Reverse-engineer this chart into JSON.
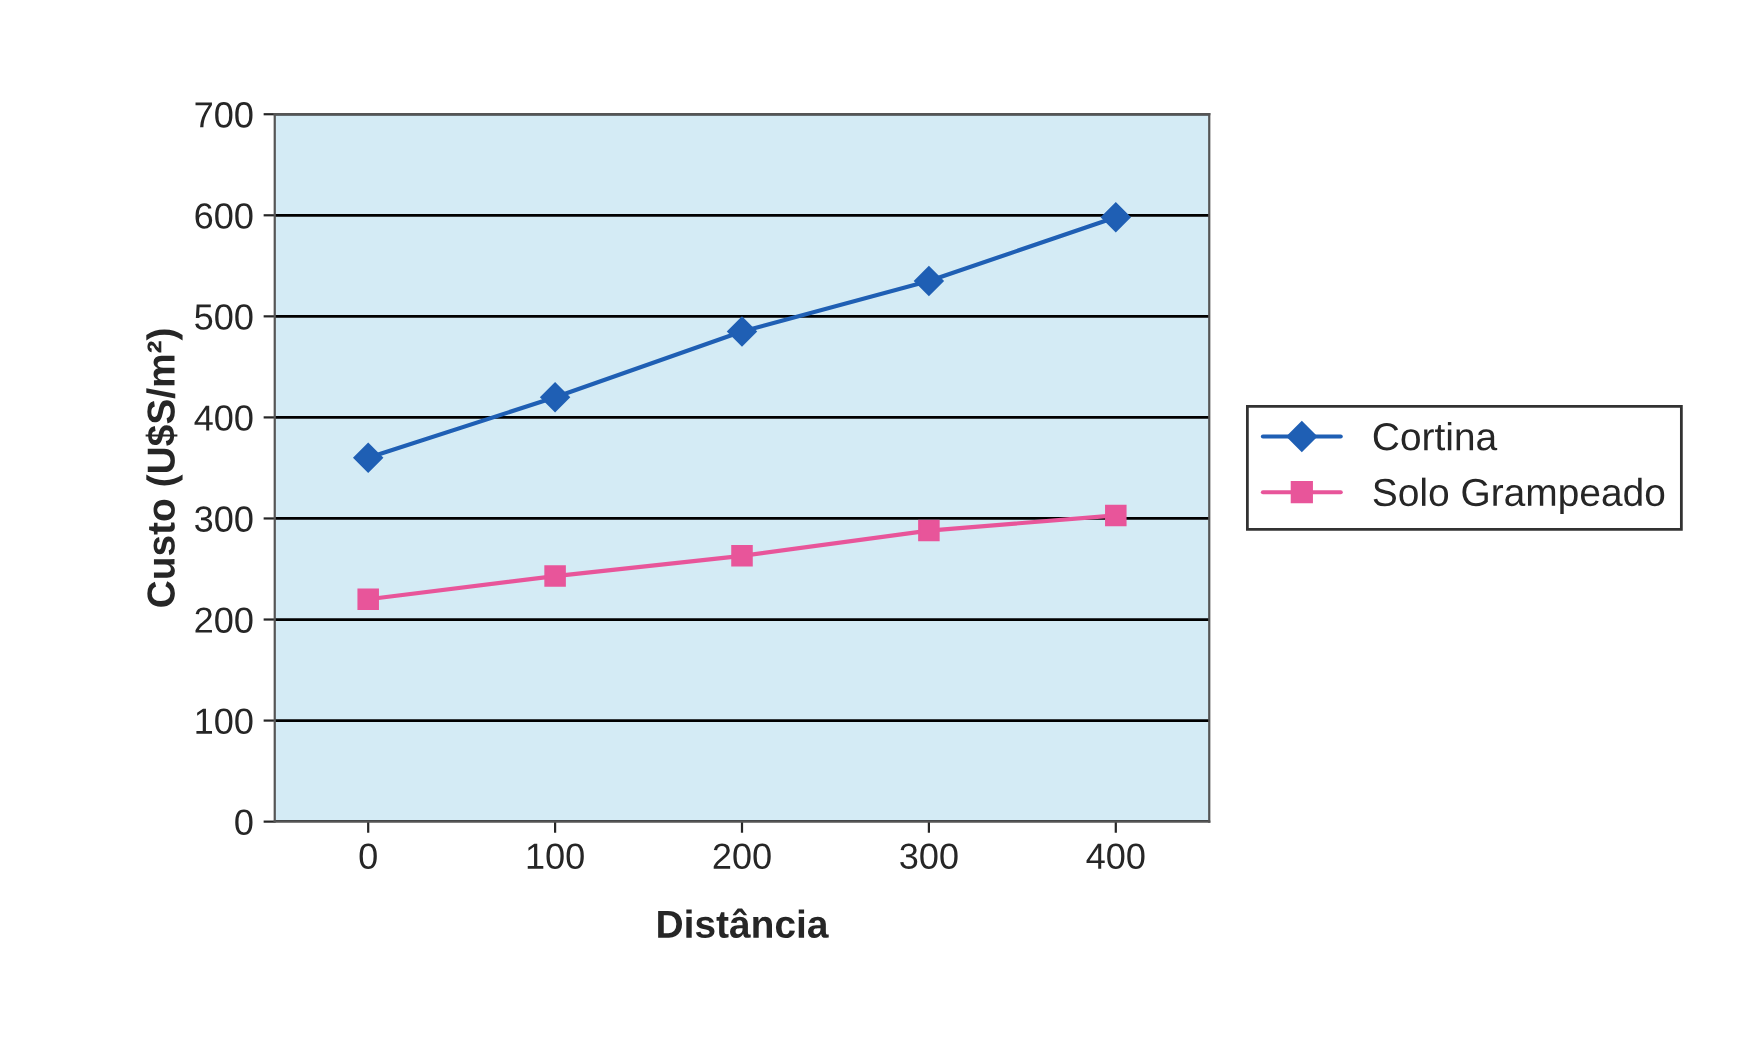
{
  "chart_data": {
    "type": "line",
    "xlabel": "Distância",
    "ylabel": "Custo (U$S/m²)",
    "categories": [
      "0",
      "100",
      "200",
      "300",
      "400"
    ],
    "series": [
      {
        "name": "Cortina",
        "color": "#1f5fb4",
        "marker": "diamond",
        "values": [
          360,
          420,
          485,
          535,
          598
        ]
      },
      {
        "name": "Solo Grampeado",
        "color": "#e8559a",
        "marker": "square",
        "values": [
          220,
          243,
          263,
          288,
          303
        ]
      }
    ],
    "ylim": [
      0,
      700
    ],
    "yticks": [
      0,
      100,
      200,
      300,
      400,
      500,
      600,
      700
    ],
    "grid": "y",
    "legend": "right",
    "line_style": "solid"
  }
}
